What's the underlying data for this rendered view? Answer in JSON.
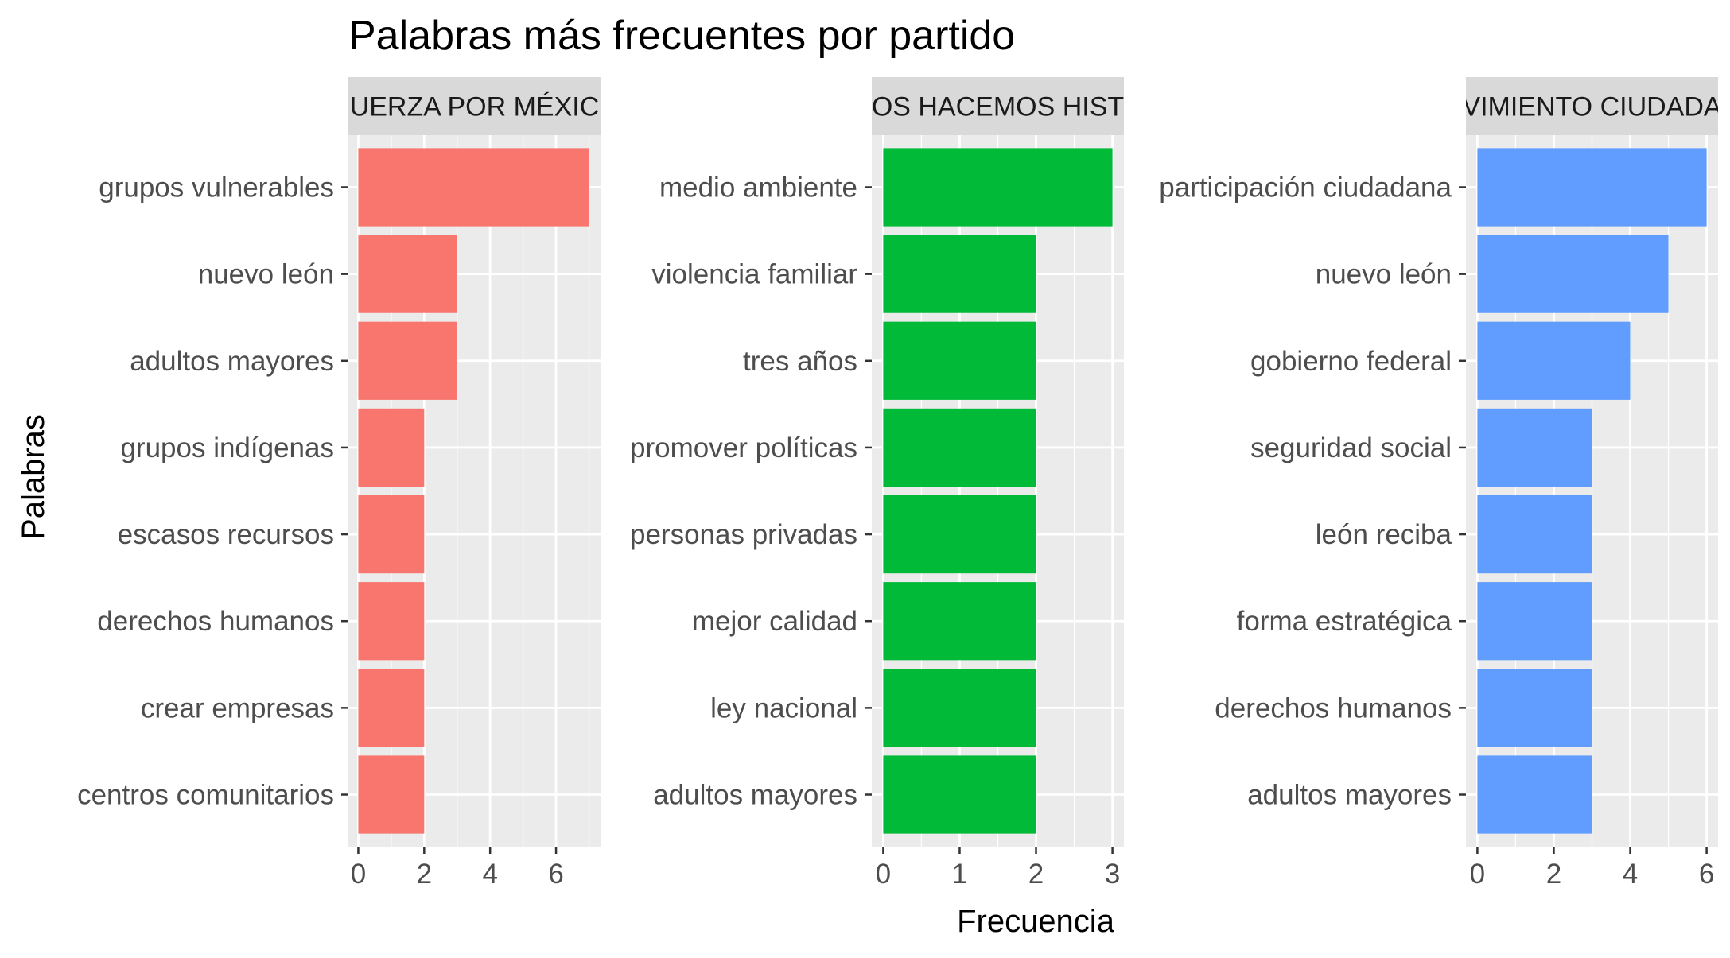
{
  "chart_data": {
    "type": "bar",
    "orientation": "horizontal",
    "title": "Palabras más frecuentes por partido",
    "xlabel": "Frecuencia",
    "ylabel": "Palabras",
    "grid": true,
    "legend": "none",
    "panels": [
      {
        "strip_label": "FUERZA POR MÉXICO",
        "strip_visible": "UERZA POR MÉXIC",
        "color": "#F8766D",
        "xlim": [
          -0.3,
          7.35
        ],
        "ticks": [
          0,
          2,
          4,
          6
        ],
        "categories": [
          "grupos vulnerables",
          "nuevo león",
          "adultos mayores",
          "grupos indígenas",
          "escasos recursos",
          "derechos humanos",
          "crear empresas",
          "centros comunitarios"
        ],
        "values": [
          7,
          3,
          3,
          2,
          2,
          2,
          2,
          2
        ]
      },
      {
        "strip_label": "JUNTOS HACEMOS HISTORIA",
        "strip_visible": "OS HACEMOS HIST",
        "color": "#00BA38",
        "xlim": [
          -0.15,
          3.15
        ],
        "ticks": [
          0,
          1,
          2,
          3
        ],
        "categories": [
          "medio ambiente",
          "violencia familiar",
          "tres años",
          "promover políticas",
          "personas privadas",
          "mejor calidad",
          "ley nacional",
          "adultos mayores"
        ],
        "values": [
          3,
          2,
          2,
          2,
          2,
          2,
          2,
          2
        ]
      },
      {
        "strip_label": "MOVIMIENTO CIUDADANO",
        "strip_visible": "VIMIENTO CIUDADA",
        "color": "#619CFF",
        "xlim": [
          -0.3,
          6.3
        ],
        "ticks": [
          0,
          2,
          4,
          6
        ],
        "categories": [
          "participación ciudadana",
          "nuevo león",
          "gobierno federal",
          "seguridad social",
          "león reciba",
          "forma estratégica",
          "derechos humanos",
          "adultos mayores"
        ],
        "values": [
          6,
          5,
          4,
          3,
          3,
          3,
          3,
          3
        ]
      }
    ]
  }
}
